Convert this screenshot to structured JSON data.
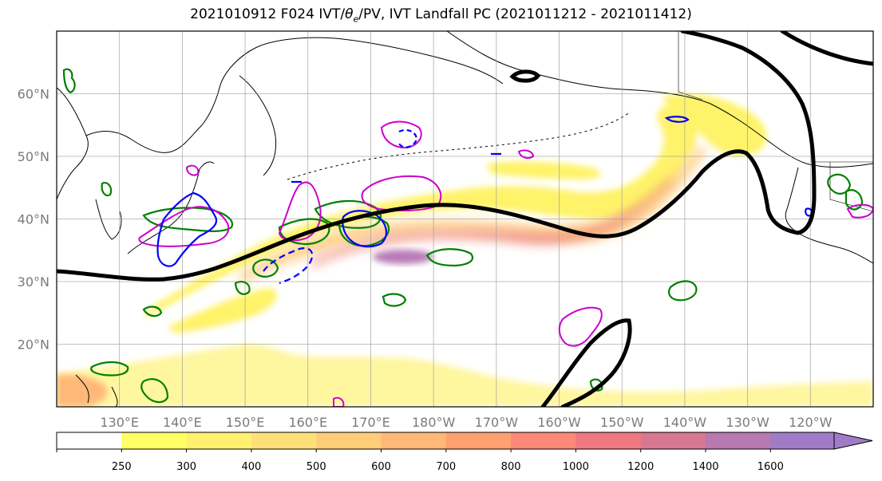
{
  "title": {
    "prefix": "2021010912 F024 IVT/",
    "theta": "θ",
    "theta_sub": "e",
    "suffix": "/PV, IVT Landfall PC (2021011212 - 2021011412)"
  },
  "map": {
    "lon_range": [
      120,
      250
    ],
    "lat_range": [
      10,
      70
    ],
    "lon_ticks": [
      {
        "lon": 130,
        "label": "130°E"
      },
      {
        "lon": 140,
        "label": "140°E"
      },
      {
        "lon": 150,
        "label": "150°E"
      },
      {
        "lon": 160,
        "label": "160°E"
      },
      {
        "lon": 170,
        "label": "170°E"
      },
      {
        "lon": 180,
        "label": "180°W"
      },
      {
        "lon": 190,
        "label": "170°W"
      },
      {
        "lon": 200,
        "label": "160°W"
      },
      {
        "lon": 210,
        "label": "150°W"
      },
      {
        "lon": 220,
        "label": "140°W"
      },
      {
        "lon": 230,
        "label": "130°W"
      },
      {
        "lon": 240,
        "label": "120°W"
      }
    ],
    "lat_ticks": [
      {
        "lat": 20,
        "label": "20°N"
      },
      {
        "lat": 30,
        "label": "30°N"
      },
      {
        "lat": 40,
        "label": "40°N"
      },
      {
        "lat": 50,
        "label": "50°N"
      },
      {
        "lat": 60,
        "label": "60°N"
      }
    ],
    "grid": true
  },
  "colorbar": {
    "ticks": [
      "250",
      "300",
      "400",
      "500",
      "600",
      "700",
      "800",
      "1000",
      "1200",
      "1400",
      "1600"
    ],
    "colors": [
      "#ffff66",
      "#fff070",
      "#ffe078",
      "#ffcc78",
      "#ffb878",
      "#ffa070",
      "#ff8878",
      "#f07880",
      "#d87890",
      "#b878b0",
      "#a07cc8"
    ],
    "extend": "max"
  },
  "colors": {
    "ivt_shading_low": "#fff36b",
    "ivt_shading_high": "#b87ab8",
    "pv_contour": "#cc00cc",
    "theta_e_contour": "#008000",
    "blue_contour": "#0000ff",
    "landfall_pc": "#000000"
  }
}
